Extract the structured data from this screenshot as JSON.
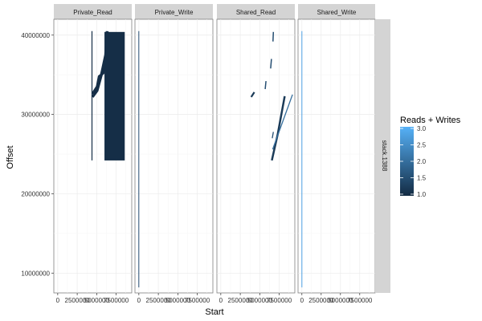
{
  "chart_data": {
    "type": "scatter",
    "facets": {
      "columns": [
        "Private_Read",
        "Private_Write",
        "Shared_Read",
        "Shared_Write"
      ],
      "row": "stack.1388"
    },
    "xlabel": "Start",
    "ylabel": "Offset",
    "x_ticks": [
      0,
      2500000,
      5000000,
      7500000
    ],
    "x_tick_labels": [
      "0",
      "2500000",
      "5000000",
      "7500000"
    ],
    "xlim": [
      -500000,
      9500000
    ],
    "y_ticks": [
      10000000,
      20000000,
      30000000,
      40000000
    ],
    "y_tick_labels": [
      "10000000",
      "20000000",
      "30000000",
      "40000000"
    ],
    "ylim": [
      7500000,
      42000000
    ],
    "grid": true,
    "legend": {
      "title": "Reads + Writes",
      "placement": "right",
      "ticks": [
        1.0,
        1.5,
        2.0,
        2.5,
        3.0
      ],
      "tick_labels": [
        "1.0",
        "1.5",
        "2.0",
        "2.5",
        "3.0"
      ],
      "range": [
        0.95,
        3.05
      ],
      "color_low": "#132b43",
      "color_high": "#56b1f7"
    },
    "colors": {
      "dark_series": "#132b43",
      "mid_series": "#2f5e87",
      "light_series": "#3f7bb0",
      "strip": "#d4d4d4",
      "grid": "#ebebeb"
    },
    "series": [
      {
        "facet": "Private_Read",
        "lines": [
          {
            "x": [
              4400000,
              4400000
            ],
            "y": [
              24200000,
              40500000
            ],
            "width": 1.2,
            "value": 1.0
          },
          {
            "x": [
              4450000,
              5050000,
              5600000,
              6150000,
              6350000
            ],
            "y": [
              32200000,
              33000000,
              35000000,
              37500000,
              40500000
            ],
            "width": 3.5,
            "value": 1.0
          },
          {
            "x": [
              4450000,
              5050000,
              5300000,
              5850000,
              6250000,
              6400000
            ],
            "y": [
              32600000,
              33500000,
              34800000,
              35200000,
              38000000,
              40300000
            ],
            "width": 3,
            "value": 1.0
          }
        ],
        "rects": [
          {
            "x": [
              6000000,
              8600000
            ],
            "y": [
              24200000,
              40400000
            ],
            "value": 1.0
          }
        ]
      },
      {
        "facet": "Private_Write",
        "lines": [
          {
            "x": [
              0,
              0
            ],
            "y": [
              8200000,
              40500000
            ],
            "width": 1,
            "value": 1.5
          }
        ],
        "rects": []
      },
      {
        "facet": "Shared_Read",
        "lines": [
          {
            "x": [
              3900000,
              4300000
            ],
            "y": [
              32200000,
              32800000
            ],
            "width": 2.2,
            "value": 1.2
          },
          {
            "x": [
              5700000,
              5800000
            ],
            "y": [
              33200000,
              34200000
            ],
            "width": 1.5,
            "value": 1.5
          },
          {
            "x": [
              6400000,
              6500000
            ],
            "y": [
              35800000,
              37000000
            ],
            "width": 1.5,
            "value": 1.5
          },
          {
            "x": [
              6700000,
              6750000
            ],
            "y": [
              39200000,
              40400000
            ],
            "width": 1.5,
            "value": 1.5
          },
          {
            "x": [
              6550000,
              7300000,
              8200000
            ],
            "y": [
              24200000,
              27500000,
              32300000
            ],
            "width": 2.5,
            "value": 1.2
          },
          {
            "x": [
              6650000,
              9200000
            ],
            "y": [
              25600000,
              32500000
            ],
            "width": 1.3,
            "value": 2.0
          },
          {
            "x": [
              6600000,
              6750000
            ],
            "y": [
              27000000,
              27800000
            ],
            "width": 1.3,
            "value": 1.5
          }
        ],
        "rects": []
      },
      {
        "facet": "Shared_Write",
        "lines": [
          {
            "x": [
              0,
              0
            ],
            "y": [
              8200000,
              40500000
            ],
            "width": 1,
            "value": 2.8
          }
        ],
        "rects": []
      }
    ]
  }
}
